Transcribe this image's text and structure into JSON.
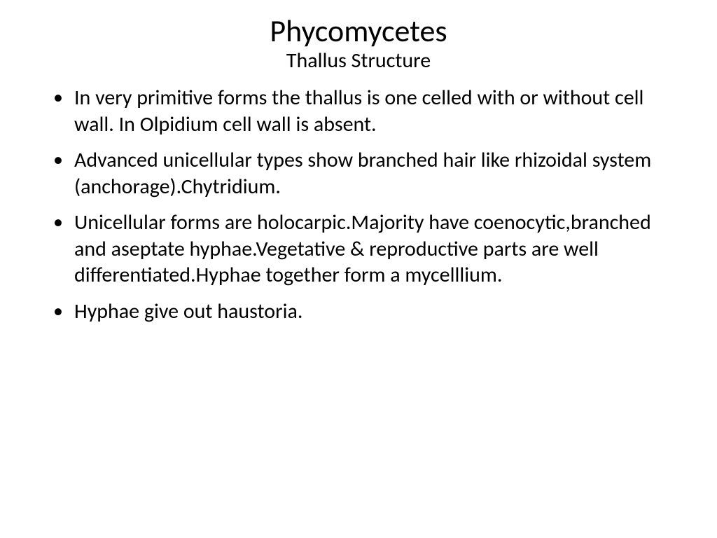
{
  "slide": {
    "title": "Phycomycetes",
    "subtitle": "Thallus Structure",
    "bullets": [
      "In very primitive forms the thallus is one celled with or without cell wall. In Olpidium cell wall is absent.",
      "Advanced unicellular types show branched hair like rhizoidal system (anchorage).Chytridium.",
      "Unicellular forms are holocarpic.Majority have coenocytic,branched and aseptate hyphae.Vegetative & reproductive parts are well differentiated.Hyphae together form a mycelllium.",
      "Hyphae give out haustoria."
    ],
    "styling": {
      "background_color": "#ffffff",
      "text_color": "#000000",
      "title_fontsize": 44,
      "subtitle_fontsize": 30,
      "body_fontsize": 30,
      "font_family": "Calibri",
      "slide_width": 1024,
      "slide_height": 768
    }
  }
}
